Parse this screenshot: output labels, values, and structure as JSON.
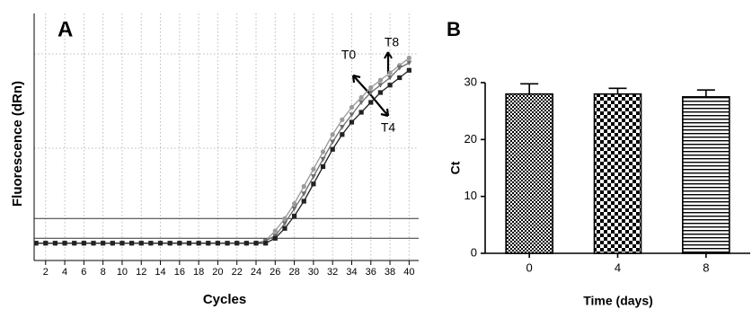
{
  "chart_data": [
    {
      "type": "line",
      "panel": "A",
      "ylabel": "Fluorescence (dRn)",
      "xlabel": "Cycles",
      "x": [
        1,
        2,
        3,
        4,
        5,
        6,
        7,
        8,
        9,
        10,
        11,
        12,
        13,
        14,
        15,
        16,
        17,
        18,
        19,
        20,
        21,
        22,
        23,
        24,
        25,
        26,
        27,
        28,
        29,
        30,
        31,
        32,
        33,
        34,
        35,
        36,
        37,
        38,
        39,
        40
      ],
      "xlim": [
        0.8,
        41
      ],
      "xticks": [
        2,
        4,
        6,
        8,
        10,
        12,
        14,
        16,
        18,
        20,
        22,
        24,
        26,
        28,
        30,
        32,
        34,
        36,
        38,
        40
      ],
      "ylim": [
        0,
        1
      ],
      "grid": true,
      "thresholds": [
        0.17,
        0.09
      ],
      "series": [
        {
          "name": "T0",
          "color": "#9a9a9a",
          "marker": "circle",
          "values": [
            0.07,
            0.07,
            0.07,
            0.07,
            0.07,
            0.07,
            0.07,
            0.07,
            0.07,
            0.07,
            0.07,
            0.07,
            0.07,
            0.07,
            0.07,
            0.07,
            0.07,
            0.07,
            0.07,
            0.07,
            0.07,
            0.07,
            0.07,
            0.07,
            0.08,
            0.12,
            0.17,
            0.23,
            0.3,
            0.37,
            0.44,
            0.51,
            0.57,
            0.62,
            0.66,
            0.7,
            0.73,
            0.76,
            0.79,
            0.82
          ]
        },
        {
          "name": "T8",
          "color": "#6e6e6e",
          "marker": "triangle",
          "values": [
            0.07,
            0.07,
            0.07,
            0.07,
            0.07,
            0.07,
            0.07,
            0.07,
            0.07,
            0.07,
            0.07,
            0.07,
            0.07,
            0.07,
            0.07,
            0.07,
            0.07,
            0.07,
            0.07,
            0.07,
            0.07,
            0.07,
            0.07,
            0.07,
            0.08,
            0.1,
            0.15,
            0.21,
            0.27,
            0.34,
            0.41,
            0.48,
            0.54,
            0.59,
            0.64,
            0.68,
            0.71,
            0.74,
            0.78,
            0.8
          ]
        },
        {
          "name": "T4",
          "color": "#222222",
          "marker": "square",
          "values": [
            0.07,
            0.07,
            0.07,
            0.07,
            0.07,
            0.07,
            0.07,
            0.07,
            0.07,
            0.07,
            0.07,
            0.07,
            0.07,
            0.07,
            0.07,
            0.07,
            0.07,
            0.07,
            0.07,
            0.07,
            0.07,
            0.07,
            0.07,
            0.07,
            0.07,
            0.09,
            0.13,
            0.18,
            0.24,
            0.31,
            0.38,
            0.45,
            0.51,
            0.56,
            0.6,
            0.64,
            0.68,
            0.71,
            0.74,
            0.77
          ]
        }
      ]
    },
    {
      "type": "bar",
      "panel": "B",
      "ylabel": "Ct",
      "xlabel": "Time (days)",
      "categories": [
        "0",
        "4",
        "8"
      ],
      "values": [
        28,
        28,
        27.5
      ],
      "errors": [
        1.8,
        1.0,
        1.2
      ],
      "patterns": [
        "checker-small",
        "checker-large",
        "horizontal-stripes"
      ],
      "ylim": [
        0,
        30
      ],
      "yticks": [
        0,
        10,
        20,
        30
      ]
    }
  ]
}
